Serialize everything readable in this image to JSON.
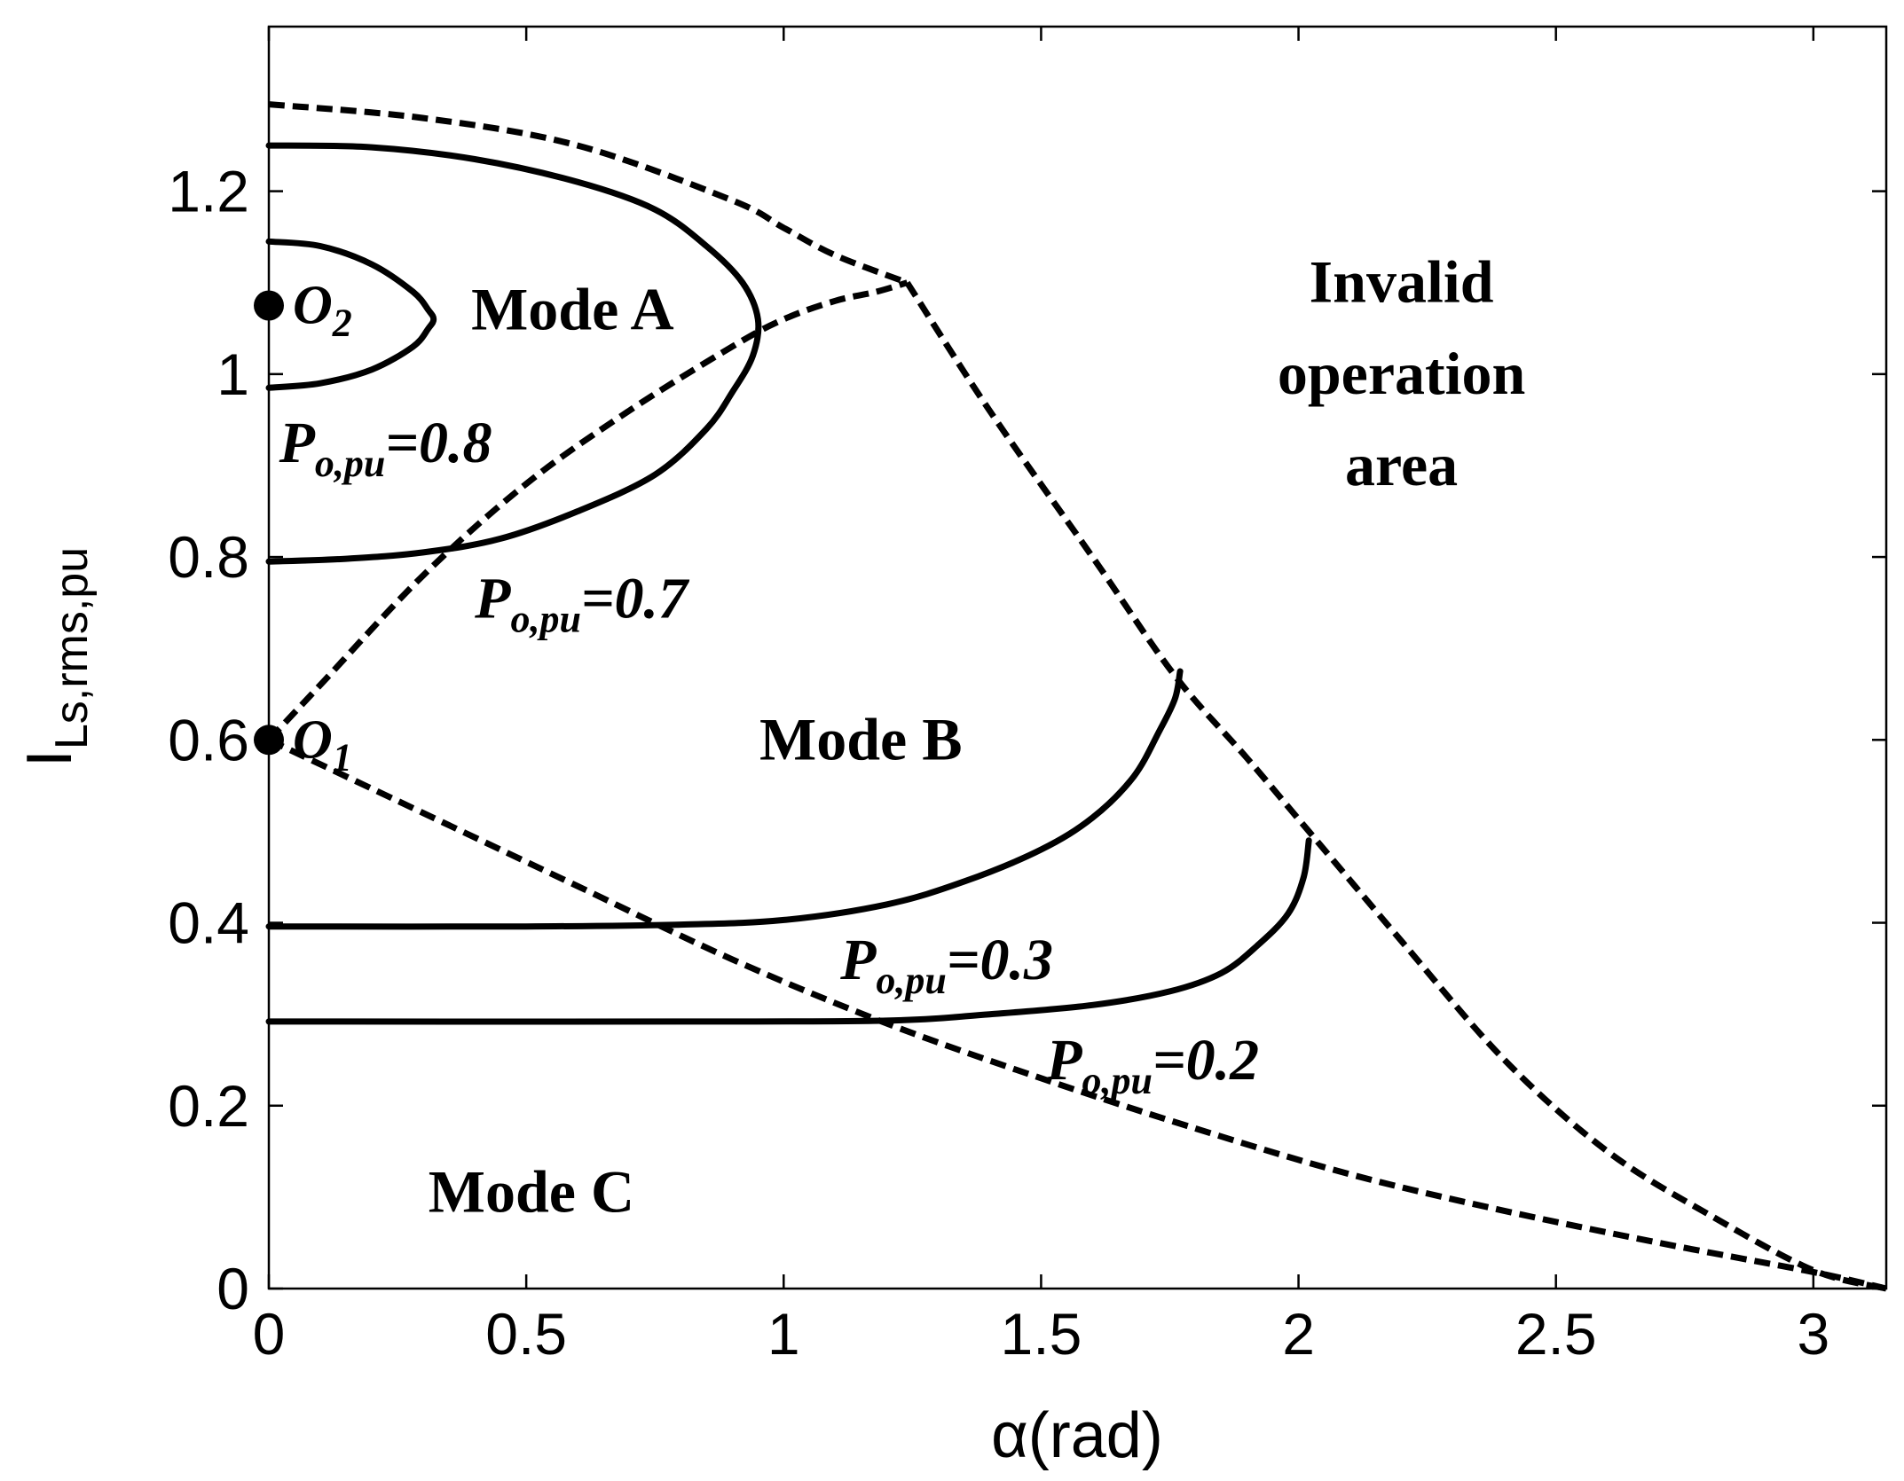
{
  "chart_data": {
    "type": "line",
    "xlabel": "α(rad)",
    "ylabel": {
      "main": "I",
      "sub": "Ls,rms,pu"
    },
    "xlim": [
      0,
      3.1416
    ],
    "ylim": [
      0,
      1.38
    ],
    "xticks": [
      0,
      0.5,
      1,
      1.5,
      2,
      2.5,
      3
    ],
    "xtick_labels": [
      "0",
      "0.5",
      "1",
      "1.5",
      "2",
      "2.5",
      "3"
    ],
    "yticks": [
      0,
      0.2,
      0.4,
      0.6,
      0.8,
      1,
      1.2
    ],
    "ytick_labels": [
      "0",
      "0.2",
      "0.4",
      "0.6",
      "0.8",
      "1",
      "1.2"
    ],
    "grid": false,
    "series": [
      {
        "label": {
          "main": "P",
          "sub": "o,pu",
          "value": "=0.8"
        },
        "style": "solid",
        "x": [
          0,
          0.1,
          0.2,
          0.28,
          0.31,
          0.32,
          0.31,
          0.28,
          0.2,
          0.1,
          0
        ],
        "y": [
          1.145,
          1.14,
          1.12,
          1.09,
          1.07,
          1.06,
          1.05,
          1.03,
          1.005,
          0.99,
          0.985
        ]
      },
      {
        "label": {
          "main": "P",
          "sub": "o,pu",
          "value": "=0.7"
        },
        "style": "solid",
        "x": [
          0,
          0.2,
          0.4,
          0.6,
          0.75,
          0.85,
          0.92,
          0.95,
          0.94,
          0.9,
          0.85,
          0.75,
          0.6,
          0.45,
          0.3,
          0.15,
          0
        ],
        "y": [
          1.25,
          1.248,
          1.235,
          1.21,
          1.18,
          1.14,
          1.1,
          1.06,
          1.02,
          0.98,
          0.94,
          0.89,
          0.85,
          0.82,
          0.805,
          0.798,
          0.795
        ]
      },
      {
        "label": {
          "main": "P",
          "sub": "o,pu",
          "value": "=0.3"
        },
        "style": "solid",
        "x": [
          0,
          0.5,
          0.8,
          1.0,
          1.2,
          1.35,
          1.5,
          1.6,
          1.68,
          1.73,
          1.76,
          1.77
        ],
        "y": [
          0.396,
          0.396,
          0.398,
          0.403,
          0.42,
          0.445,
          0.48,
          0.515,
          0.56,
          0.61,
          0.645,
          0.675
        ]
      },
      {
        "label": {
          "main": "P",
          "sub": "o,pu",
          "value": "=0.2"
        },
        "style": "solid",
        "x": [
          0,
          0.8,
          1.2,
          1.4,
          1.6,
          1.75,
          1.85,
          1.92,
          1.98,
          2.01,
          2.02
        ],
        "y": [
          0.292,
          0.292,
          0.293,
          0.3,
          0.31,
          0.325,
          0.345,
          0.375,
          0.41,
          0.45,
          0.49
        ]
      },
      {
        "label": "",
        "style": "dashed",
        "x": [
          0,
          0.1,
          0.3,
          0.5,
          0.7,
          0.9,
          1.0,
          1.1,
          1.18,
          1.24
        ],
        "y": [
          0.6,
          0.66,
          0.78,
          0.88,
          0.96,
          1.03,
          1.06,
          1.08,
          1.09,
          1.1
        ]
      },
      {
        "label": "",
        "style": "dashed",
        "x": [
          0,
          0.3,
          0.6,
          0.9,
          1.0,
          1.1,
          1.24
        ],
        "y": [
          1.295,
          1.28,
          1.25,
          1.19,
          1.16,
          1.13,
          1.1
        ]
      },
      {
        "label": "",
        "style": "dashed",
        "x": [
          1.24,
          1.4,
          1.6,
          1.76,
          1.9,
          2.02,
          2.2,
          2.4,
          2.6,
          2.8,
          3.0,
          3.1416
        ],
        "y": [
          1.1,
          0.96,
          0.8,
          0.67,
          0.58,
          0.5,
          0.38,
          0.25,
          0.15,
          0.08,
          0.02,
          0
        ]
      },
      {
        "label": "",
        "style": "dashed",
        "x": [
          0,
          0.3,
          0.6,
          0.9,
          1.2,
          1.5,
          1.8,
          2.1,
          2.4,
          2.7,
          3.0,
          3.1416
        ],
        "y": [
          0.6,
          0.52,
          0.44,
          0.36,
          0.29,
          0.23,
          0.175,
          0.125,
          0.085,
          0.05,
          0.018,
          0
        ]
      }
    ],
    "points": [
      {
        "name": "O",
        "sub": "1",
        "x": 0,
        "y": 0.6
      },
      {
        "name": "O",
        "sub": "2",
        "x": 0,
        "y": 1.075
      }
    ],
    "annotations": [
      {
        "text": "Mode A",
        "x": 0.59,
        "y": 1.07
      },
      {
        "text": "Mode B",
        "x": 1.15,
        "y": 0.6
      },
      {
        "text": "Mode C",
        "x": 0.51,
        "y": 0.105
      },
      {
        "text": "Invalid",
        "x": 2.2,
        "y": 1.1
      },
      {
        "text": "operation",
        "x": 2.2,
        "y": 1.0
      },
      {
        "text": "area",
        "x": 2.2,
        "y": 0.9
      }
    ],
    "curve_label_positions": [
      {
        "series": 0,
        "x": 0.02,
        "y": 0.925
      },
      {
        "series": 1,
        "x": 0.4,
        "y": 0.755
      },
      {
        "series": 2,
        "x": 1.11,
        "y": 0.36
      },
      {
        "series": 3,
        "x": 1.51,
        "y": 0.25
      }
    ]
  }
}
